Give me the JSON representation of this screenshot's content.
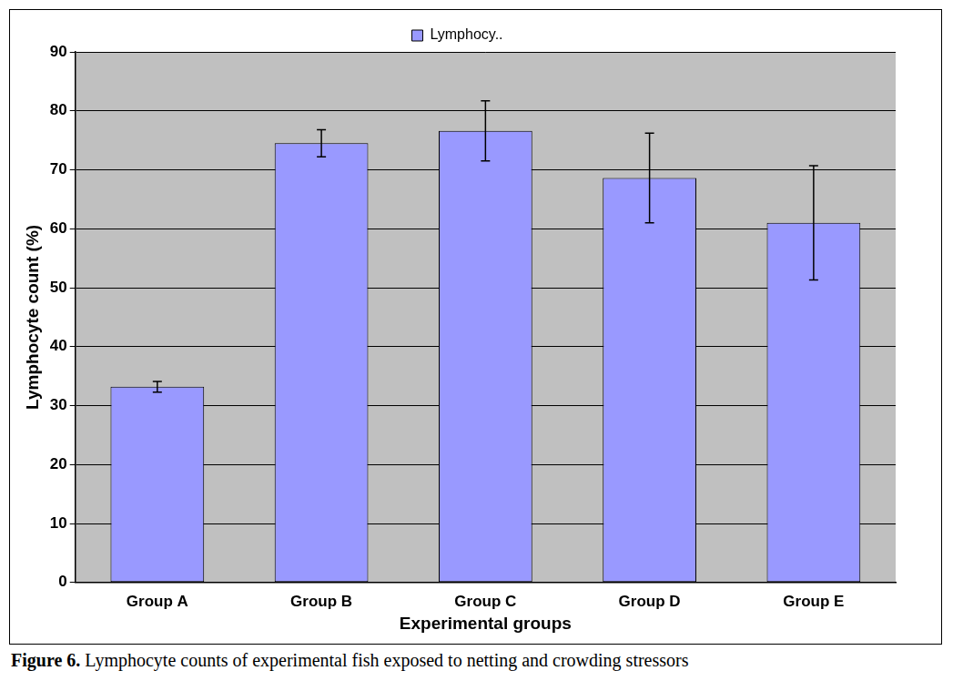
{
  "chart_data": {
    "type": "bar",
    "categories": [
      "Group A",
      "Group B",
      "Group C",
      "Group D",
      "Group E"
    ],
    "series": [
      {
        "name": "Lymphocy..",
        "color": "#9999ff",
        "values": [
          33.2,
          74.5,
          76.6,
          68.6,
          61.0
        ],
        "errors": [
          0.9,
          2.3,
          5.1,
          7.6,
          9.7
        ]
      }
    ],
    "x_label": "Experimental groups",
    "y_label": "Lymphocyte count (%)",
    "ylim": [
      0,
      90
    ],
    "yticks": [
      0,
      10,
      20,
      30,
      40,
      50,
      60,
      70,
      80,
      90
    ],
    "grid": true,
    "legend": "top"
  },
  "caption": {
    "label": "Figure 6.",
    "text": "Lymphocyte counts of experimental fish exposed to netting and crowding stressors"
  }
}
